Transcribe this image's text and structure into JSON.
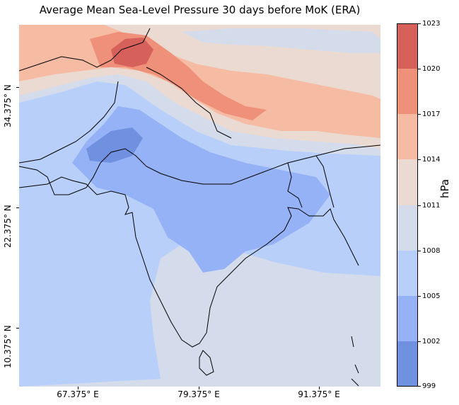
{
  "title": "Average Mean Sea-Level Pressure 30 days before MoK (ERA)",
  "axes": {
    "x_ticks": [
      "67.375° E",
      "79.375° E",
      "91.375° E"
    ],
    "y_ticks": [
      "34.375° N",
      "22.375° N",
      "10.375° N"
    ]
  },
  "colorbar": {
    "label": "hPa",
    "levels": [
      "1023",
      "1020",
      "1017",
      "1014",
      "1011",
      "1008",
      "1005",
      "1002",
      "999"
    ],
    "colors": [
      "#d6605a",
      "#ee907a",
      "#f6bba3",
      "#ebdad1",
      "#d4dcec",
      "#b8cff9",
      "#94b2f5",
      "#7090e0"
    ]
  },
  "map": {
    "colors": {
      "c999": "#7090e0",
      "c1002": "#94b2f5",
      "c1005": "#b8cff9",
      "c1008": "#d4dcec",
      "c1011": "#ebdad1",
      "c1014": "#f6bba3",
      "c1017": "#ee907a",
      "c1020": "#d6605a"
    }
  }
}
